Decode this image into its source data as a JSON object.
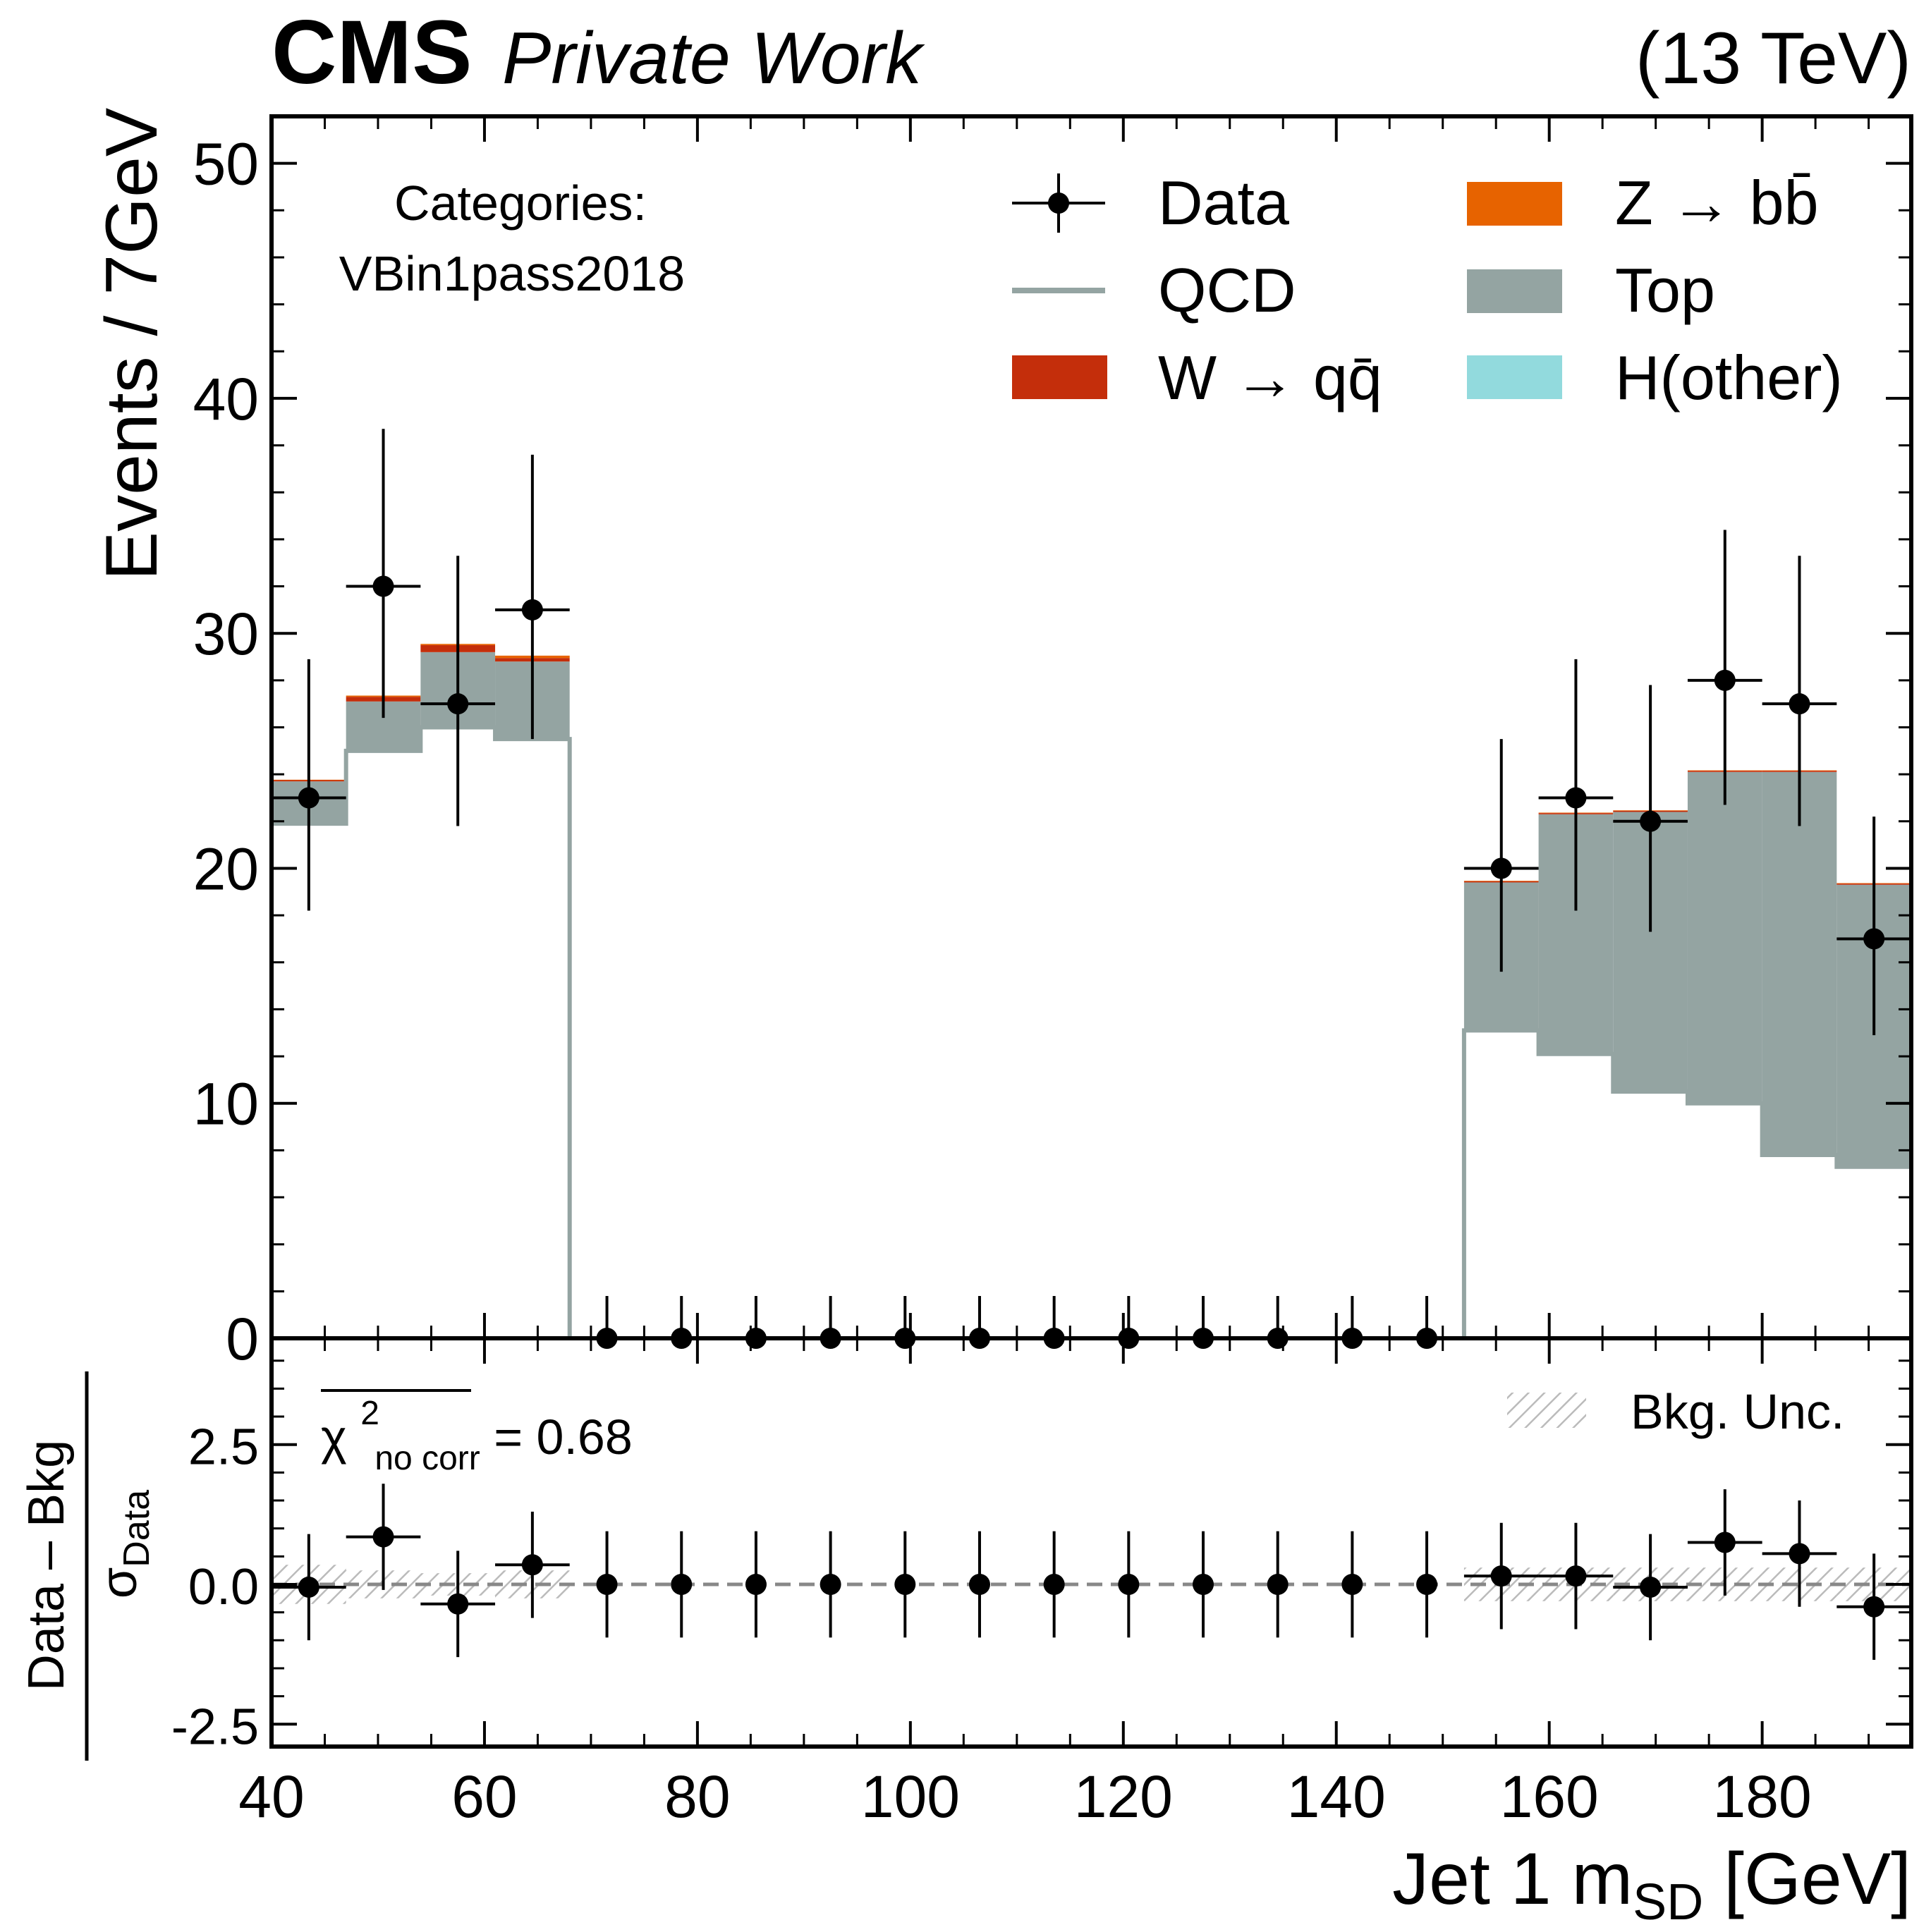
{
  "header": {
    "experiment": "CMS",
    "label": "Private Work",
    "energy": "(13 TeV)"
  },
  "annotation": {
    "category_title": "Categories:",
    "category_name": "VBin1pass2018",
    "chi2_symbol": "χ",
    "chi2_sup": "2",
    "chi2_sub": "no corr",
    "chi2_value": " = 0.68",
    "bkg_unc_label": "Bkg. Unc."
  },
  "legend": [
    {
      "key": "data",
      "label": "Data",
      "kind": "errorbar"
    },
    {
      "key": "qcd",
      "label": "QCD",
      "kind": "line"
    },
    {
      "key": "wqq",
      "label": "W → qq̄",
      "kind": "patch"
    },
    {
      "key": "zbb",
      "label": "Z → bb̄",
      "kind": "patch"
    },
    {
      "key": "top",
      "label": "Top",
      "kind": "patch"
    },
    {
      "key": "hother",
      "label": "H(other)",
      "kind": "patch"
    }
  ],
  "axes": {
    "ylabel_main": "Events / 7GeV",
    "ylabel_ratio_num": "Data – Bkg",
    "ylabel_ratio_den": "σ",
    "ylabel_ratio_den_sub": "Data",
    "xlabel_main": "Jet 1 m",
    "xlabel_sub": "SD",
    "xlabel_unit": " [GeV]",
    "xticks": [
      "40",
      "60",
      "80",
      "100",
      "120",
      "140",
      "160",
      "180"
    ],
    "yticks_main": [
      "0",
      "10",
      "20",
      "30",
      "40",
      "50"
    ],
    "yticks_ratio": [
      "-2.5",
      "0.0",
      "2.5"
    ]
  },
  "colors": {
    "qcd": "#94a4a2",
    "top": "#94a4a2",
    "wqq": "#c42e0b",
    "zbb": "#e76300",
    "hother": "#92dadd",
    "data": "#000000",
    "unc_hatch": "#bbbbbb"
  },
  "chart_data": [
    {
      "type": "bar",
      "panel": "main",
      "stacked": true,
      "x_range": [
        40,
        194
      ],
      "ylim": [
        0,
        52
      ],
      "bin_edges": [
        40,
        47,
        54,
        61,
        68,
        75,
        82,
        89,
        96,
        103,
        110,
        117,
        124,
        131,
        138,
        145,
        152,
        159,
        166,
        173,
        180,
        187,
        194
      ],
      "bin_centers": [
        43.5,
        50.5,
        57.5,
        64.5,
        71.5,
        78.5,
        85.5,
        92.5,
        99.5,
        106.5,
        113.5,
        120.5,
        127.5,
        134.5,
        141.5,
        148.5,
        155.5,
        162.5,
        169.5,
        176.5,
        183.5,
        190.5
      ],
      "series": [
        {
          "name": "QCD",
          "key": "qcd",
          "style": "step-line",
          "values": [
            21.9,
            25.0,
            26.0,
            25.5,
            0,
            0,
            0,
            0,
            0,
            0,
            0,
            0,
            0,
            0,
            0,
            0,
            13.1,
            12.1,
            10.5,
            10.0,
            7.8,
            7.3
          ]
        },
        {
          "name": "Top",
          "key": "top",
          "style": "band-from-qcd",
          "values": [
            1.8,
            2.1,
            3.2,
            3.3,
            0,
            0,
            0,
            0,
            0,
            0,
            0,
            0,
            0,
            0,
            0,
            0,
            6.3,
            10.2,
            11.9,
            14.1,
            16.3,
            12.0
          ]
        },
        {
          "name": "W → qq̄",
          "key": "wqq",
          "style": "stack",
          "values": [
            0.05,
            0.2,
            0.3,
            0.15,
            0,
            0,
            0,
            0,
            0,
            0,
            0,
            0,
            0,
            0,
            0,
            0,
            0.05,
            0.05,
            0.05,
            0.05,
            0.05,
            0.05
          ]
        },
        {
          "name": "Z → bb̄",
          "key": "zbb",
          "style": "stack",
          "values": [
            0.02,
            0.05,
            0.05,
            0.1,
            0,
            0,
            0,
            0,
            0,
            0,
            0,
            0,
            0,
            0,
            0,
            0,
            0.02,
            0.02,
            0.02,
            0.02,
            0.02,
            0.02
          ]
        },
        {
          "name": "H(other)",
          "key": "hother",
          "style": "stack",
          "values": [
            0,
            0,
            0,
            0,
            0,
            0,
            0,
            0,
            0,
            0,
            0,
            0,
            0,
            0,
            0,
            0,
            0,
            0,
            0,
            0,
            0,
            0
          ]
        }
      ],
      "data": {
        "name": "Data",
        "values": [
          23,
          32,
          27,
          31,
          0,
          0,
          0,
          0,
          0,
          0,
          0,
          0,
          0,
          0,
          0,
          0,
          20,
          23,
          22,
          28,
          27,
          17
        ],
        "err_lo": [
          4.8,
          5.6,
          5.2,
          5.5,
          0,
          0,
          0,
          0,
          0,
          0,
          0,
          0,
          0,
          0,
          0,
          0,
          4.4,
          4.8,
          4.7,
          5.3,
          5.2,
          4.1
        ],
        "err_hi": [
          5.9,
          6.7,
          6.3,
          6.6,
          1.8,
          1.8,
          1.8,
          1.8,
          1.8,
          1.8,
          1.8,
          1.8,
          1.8,
          1.8,
          1.8,
          1.8,
          5.5,
          5.9,
          5.8,
          6.4,
          6.3,
          5.2
        ]
      }
    },
    {
      "type": "scatter",
      "panel": "ratio",
      "x_range": [
        40,
        194
      ],
      "ylim": [
        -2.9,
        4.4
      ],
      "x": [
        43.5,
        50.5,
        57.5,
        64.5,
        71.5,
        78.5,
        85.5,
        92.5,
        99.5,
        106.5,
        113.5,
        120.5,
        127.5,
        134.5,
        141.5,
        148.5,
        155.5,
        162.5,
        169.5,
        176.5,
        183.5,
        190.5
      ],
      "values": [
        -0.05,
        0.85,
        -0.35,
        0.35,
        0.0,
        0.0,
        0.0,
        0.0,
        0.0,
        0.0,
        0.0,
        0.0,
        0.0,
        0.0,
        0.0,
        0.0,
        0.15,
        0.15,
        -0.05,
        0.75,
        0.55,
        -0.4
      ],
      "err": [
        0.95,
        0.95,
        0.95,
        0.95,
        0.95,
        0.95,
        0.95,
        0.95,
        0.95,
        0.95,
        0.95,
        0.95,
        0.95,
        0.95,
        0.95,
        0.95,
        0.95,
        0.95,
        0.95,
        0.95,
        0.95,
        0.95
      ],
      "bkg_unc": [
        0.35,
        0.25,
        0.2,
        0.25,
        0,
        0,
        0,
        0,
        0,
        0,
        0,
        0,
        0,
        0,
        0,
        0,
        0.3,
        0.3,
        0.3,
        0.3,
        0.3,
        0.3
      ],
      "reference_line": 0
    }
  ]
}
